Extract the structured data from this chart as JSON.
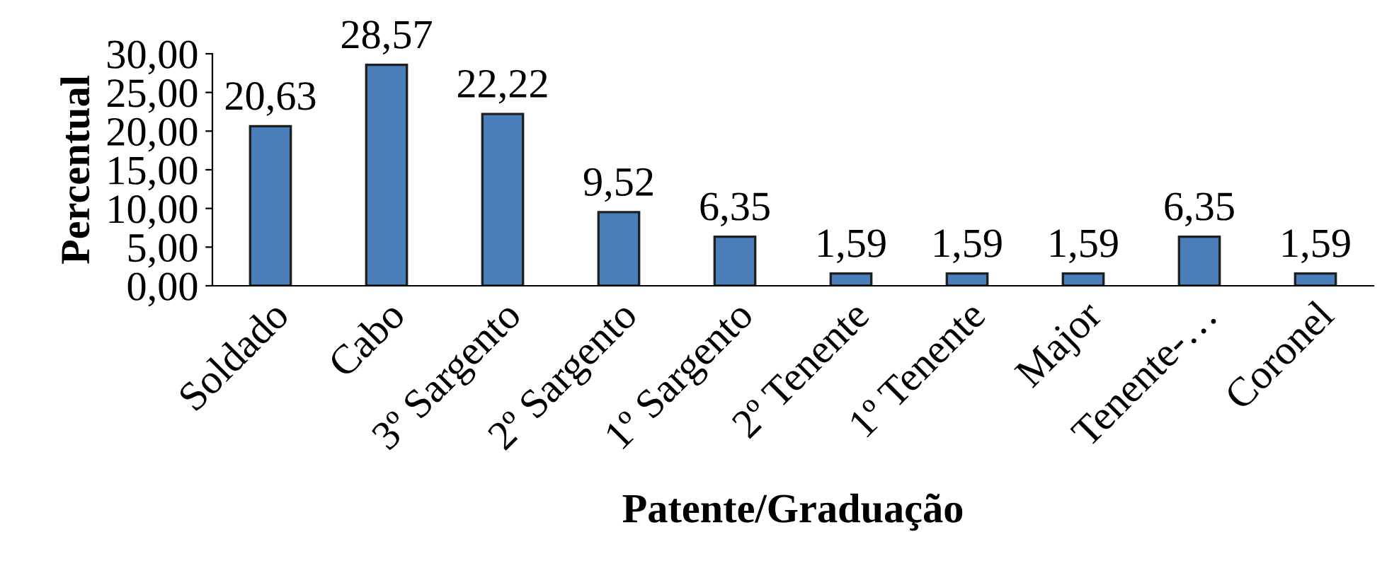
{
  "chart_data": {
    "type": "bar",
    "xlabel": "Patente/Graduação",
    "ylabel": "Percentual",
    "categories": [
      "Soldado",
      "Cabo",
      "3º Sargento",
      "2º Sargento",
      "1º Sargento",
      "2º Tenente",
      "1º Tenente",
      "Major",
      "Tenente-…",
      "Coronel"
    ],
    "values": [
      20.63,
      28.57,
      22.22,
      9.52,
      6.35,
      1.59,
      1.59,
      1.59,
      6.35,
      1.59
    ],
    "value_labels": [
      "20,63",
      "28,57",
      "22,22",
      "9,52",
      "6,35",
      "1,59",
      "1,59",
      "1,59",
      "6,35",
      "1,59"
    ],
    "color": "#4a7ebb",
    "ylim": [
      0,
      30
    ],
    "yticks": [
      {
        "value": 0,
        "label": "0,00"
      },
      {
        "value": 5,
        "label": "5,00"
      },
      {
        "value": 10,
        "label": "10,00"
      },
      {
        "value": 15,
        "label": "15,00"
      },
      {
        "value": 20,
        "label": "20,00"
      },
      {
        "value": 25,
        "label": "25,00"
      },
      {
        "value": 30,
        "label": "30,00"
      }
    ],
    "grid": false,
    "legend": false
  }
}
